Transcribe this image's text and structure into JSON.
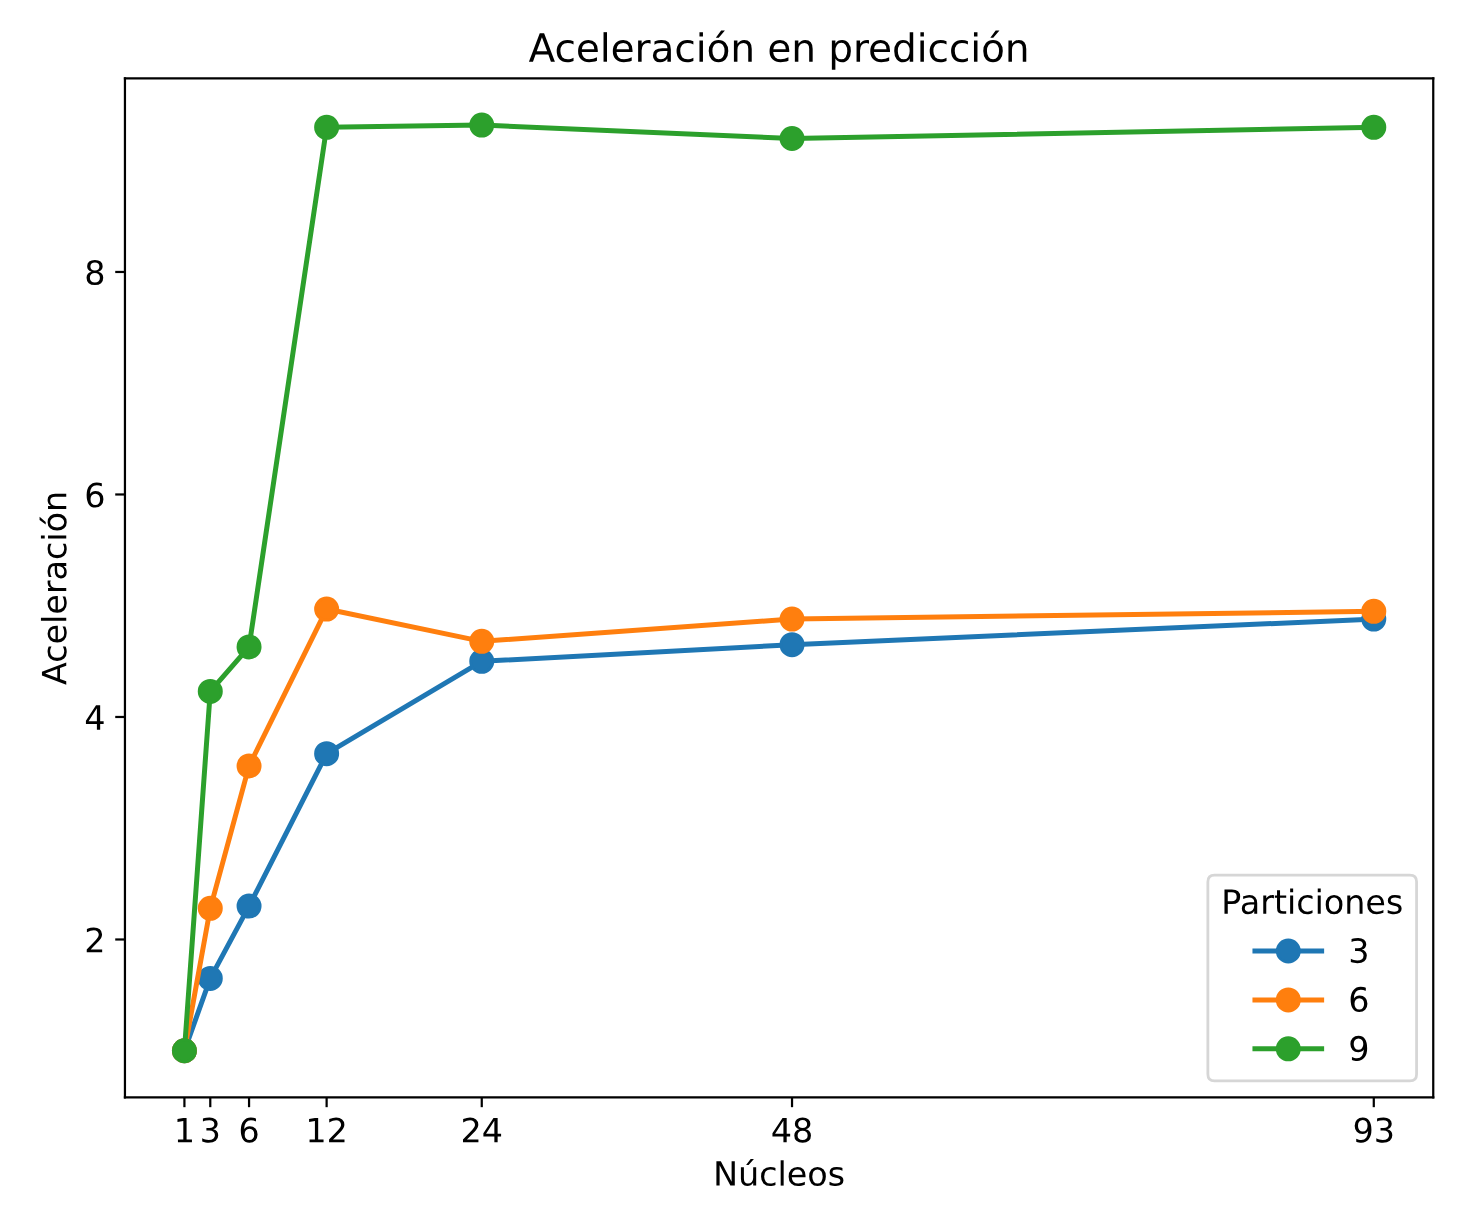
{
  "chart_data": {
    "type": "line",
    "title": "Aceleración en predicción",
    "xlabel": "Núcleos",
    "ylabel": "Aceleración",
    "legend_title": "Particiones",
    "legend": "bottom right",
    "marker": "circle",
    "line_style": "solid",
    "grid": false,
    "x": [
      1,
      3,
      6,
      12,
      24,
      48,
      93
    ],
    "xlim": [
      -3.6,
      97.6
    ],
    "xticks": [
      1,
      3,
      6,
      12,
      24,
      48,
      93
    ],
    "ylim": [
      0.58,
      9.74
    ],
    "yticks": [
      2,
      4,
      6,
      8
    ],
    "series": [
      {
        "name": "3",
        "color": "#1f77b4",
        "values": [
          1,
          1.65,
          2.3,
          3.67,
          4.5,
          4.65,
          4.88
        ]
      },
      {
        "name": "6",
        "color": "#ff7f0e",
        "values": [
          1,
          2.28,
          3.56,
          4.97,
          4.68,
          4.88,
          4.95
        ]
      },
      {
        "name": "9",
        "color": "#2ca02c",
        "values": [
          1,
          4.23,
          4.63,
          9.3,
          9.32,
          9.2,
          9.3
        ]
      }
    ]
  }
}
